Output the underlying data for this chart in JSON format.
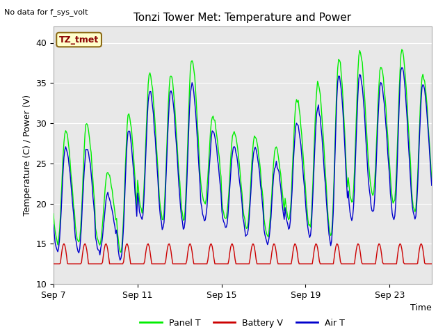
{
  "title": "Tonzi Tower Met: Temperature and Power",
  "xlabel": "Time",
  "ylabel": "Temperature (C) / Power (V)",
  "top_label": "No data for f_sys_volt",
  "annotation": "TZ_tmet",
  "ylim": [
    10,
    42
  ],
  "yticks": [
    10,
    15,
    20,
    25,
    30,
    35,
    40
  ],
  "xtick_labels": [
    "Sep 7",
    "Sep 11",
    "Sep 15",
    "Sep 19",
    "Sep 23"
  ],
  "xtick_positions": [
    0,
    4,
    8,
    12,
    16
  ],
  "total_days": 18,
  "bg_color": "#e8e8e8",
  "panel_color": "#00ee00",
  "battery_color": "#cc0000",
  "air_color": "#0000cc",
  "legend_labels": [
    "Panel T",
    "Battery V",
    "Air T"
  ],
  "line_width": 1.0,
  "figwidth": 6.4,
  "figheight": 4.8,
  "dpi": 100
}
